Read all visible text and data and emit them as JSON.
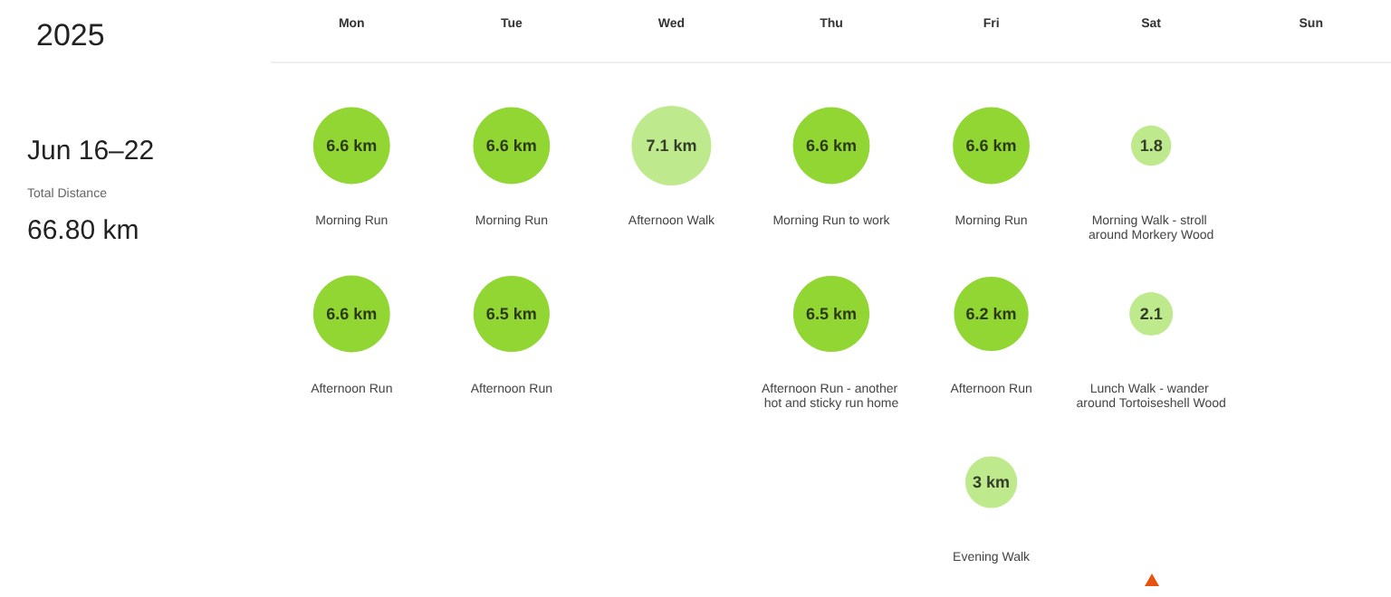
{
  "chart_data": {
    "type": "other",
    "title": "2025",
    "categories": [
      "Mon",
      "Tue",
      "Wed",
      "Thu",
      "Fri",
      "Sat",
      "Sun"
    ],
    "series": [
      {
        "colors": [
          "#76cc00",
          "#76cc00",
          "#aee36f",
          "#76cc00",
          "#76cc00",
          "#aee36f",
          null
        ],
        "values": [
          6.6,
          6.6,
          7.1,
          6.6,
          6.6,
          1.8,
          null
        ],
        "value_labels": [
          "6.6 km",
          "6.6 km",
          "7.1 km",
          "6.6 km",
          "6.6 km",
          "1.8",
          null
        ]
      },
      {
        "colors": [
          "#76cc00",
          "#76cc00",
          null,
          "#76cc00",
          "#76cc00",
          "#aee36f",
          null
        ],
        "values": [
          6.6,
          6.5,
          null,
          6.5,
          6.2,
          2.1,
          null
        ],
        "value_labels": [
          "6.6 km",
          "6.5 km",
          null,
          "6.5 km",
          "6.2 km",
          "2.1",
          null
        ]
      },
      {
        "colors": [
          null,
          null,
          null,
          null,
          "#aee36f",
          null,
          null
        ],
        "values": [
          null,
          null,
          null,
          null,
          3,
          null,
          null
        ],
        "value_labels": [
          null,
          null,
          null,
          null,
          "3 km",
          null,
          null
        ]
      }
    ],
    "annotations": [
      "Jun 16–22",
      "Total Distance",
      "66.80 km",
      {
        "text": "Morning Run",
        "x": "Mon"
      },
      {
        "text": "Morning Run",
        "x": "Tue"
      },
      {
        "text": "Afternoon Walk",
        "x": "Wed"
      },
      {
        "text": "Morning Run to work",
        "x": "Thu"
      },
      {
        "text": "Morning Run",
        "x": "Fri"
      },
      {
        "text": "Morning Walk - stroll around Morkery Wood",
        "x": "Sat"
      },
      {
        "text": "Afternoon Run",
        "x": "Mon"
      },
      {
        "text": "Afternoon Run",
        "x": "Tue"
      },
      {
        "text": "Afternoon Run - another hot and sticky run home",
        "x": "Thu"
      },
      {
        "text": "Afternoon Run",
        "x": "Fri"
      },
      {
        "text": "Lunch Walk - wander around Tortoiseshell Wood",
        "x": "Sat"
      },
      {
        "text": "Evening Walk",
        "x": "Fri"
      }
    ]
  }
}
